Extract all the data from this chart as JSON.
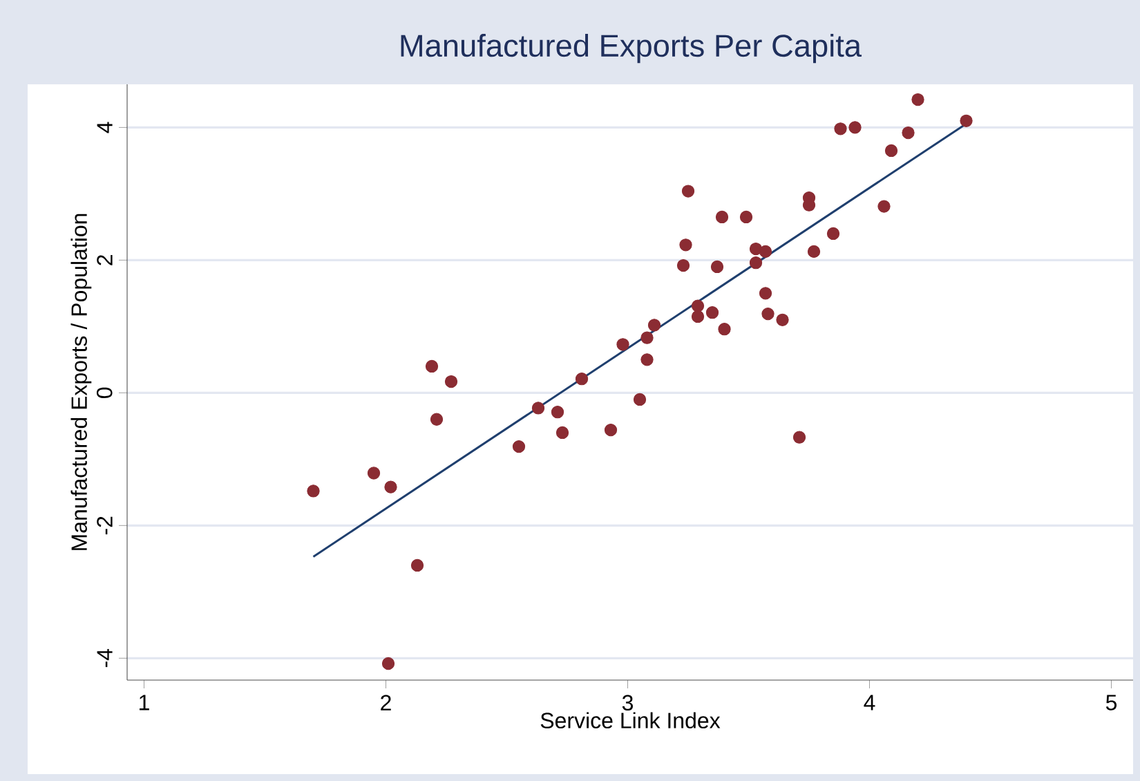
{
  "chart_data": {
    "type": "scatter",
    "title": "Manufactured Exports Per Capita",
    "xlabel": "Service Link Index",
    "ylabel": "Manufactured Exports / Population",
    "xlim": [
      0.93,
      5.09
    ],
    "ylim": [
      -4.33,
      4.65
    ],
    "xticks": [
      1,
      2,
      3,
      4,
      5
    ],
    "yticks": [
      -4,
      -2,
      0,
      2,
      4
    ],
    "grid": "y",
    "series": [
      {
        "color": "#8b2c33",
        "x": [
          1.7,
          1.95,
          2.02,
          2.13,
          2.01,
          2.19,
          2.21,
          2.27,
          2.55,
          2.63,
          2.71,
          2.73,
          2.81,
          2.93,
          2.98,
          3.05,
          3.08,
          3.08,
          3.11,
          3.23,
          3.24,
          3.25,
          3.29,
          3.29,
          3.35,
          3.37,
          3.39,
          3.4,
          3.49,
          3.53,
          3.53,
          3.57,
          3.57,
          3.58,
          3.64,
          3.71,
          3.75,
          3.75,
          3.77,
          3.85,
          3.88,
          3.94,
          4.06,
          4.09,
          4.16,
          4.2,
          4.4
        ],
        "values": [
          -1.48,
          -1.21,
          -1.42,
          -2.6,
          -4.08,
          0.4,
          -0.4,
          0.17,
          -0.81,
          -0.23,
          -0.29,
          -0.6,
          0.21,
          -0.56,
          0.73,
          -0.1,
          0.83,
          0.5,
          1.02,
          1.92,
          2.23,
          3.04,
          1.31,
          1.15,
          1.21,
          1.9,
          2.65,
          0.96,
          2.65,
          2.17,
          1.96,
          2.13,
          1.5,
          1.19,
          1.1,
          -0.67,
          2.94,
          2.83,
          2.13,
          2.4,
          3.98,
          4.0,
          2.81,
          3.65,
          3.92,
          4.42,
          4.1
        ]
      },
      {
        "type": "line",
        "color": "#1f3f6e",
        "x": [
          1.7,
          4.41
        ],
        "values": [
          -2.47,
          4.08
        ]
      }
    ]
  }
}
